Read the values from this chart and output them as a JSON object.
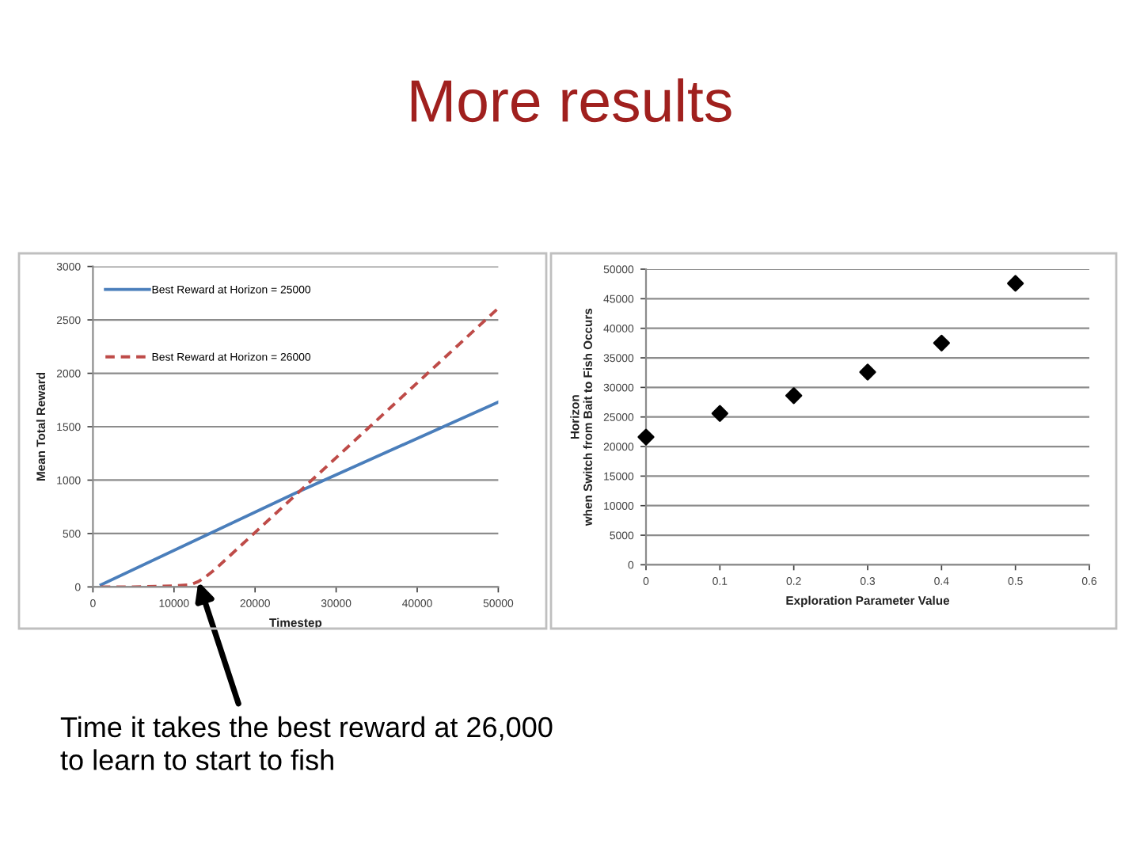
{
  "chart_data": [
    {
      "type": "line",
      "title": "More results",
      "xlabel": "Timestep",
      "ylabel": "Mean Total Reward",
      "xlim": [
        0,
        50000
      ],
      "xticks": [
        0,
        10000,
        20000,
        30000,
        40000,
        50000
      ],
      "ylim": [
        0,
        3000
      ],
      "yticks": [
        0,
        500,
        1000,
        1500,
        2000,
        2500,
        3000
      ],
      "grid": "y",
      "legend": "top left",
      "series": [
        {
          "name": "Best Reward at Horizon = 25000",
          "color": "#4a7ebb",
          "line_style": "solid",
          "x": [
            1000,
            25000,
            50000
          ],
          "values": [
            20,
            880,
            1730
          ]
        },
        {
          "name": "Best Reward at Horizon = 26000",
          "color": "#be4b48",
          "line_style": "dashed",
          "x": [
            1000,
            5000,
            10000,
            12000,
            13000,
            14000,
            15000,
            20000,
            25000,
            30000,
            35000,
            40000,
            45000,
            50000
          ],
          "values": [
            0,
            0,
            10,
            20,
            50,
            100,
            160,
            510,
            860,
            1210,
            1560,
            1910,
            2260,
            2610
          ]
        }
      ],
      "annotations": [
        {
          "text": "Time it takes the best reward at 26,000\nto learn to start to fish",
          "x": 13000,
          "y": 50
        }
      ]
    },
    {
      "type": "scatter",
      "xlabel": "Exploration Parameter Value",
      "ylabel": "Horizon\nwhen Switch from Bait to Fish Occurs",
      "xlim": [
        0,
        0.6
      ],
      "xticks": [
        0,
        0.1,
        0.2,
        0.3,
        0.4,
        0.5,
        0.6
      ],
      "ylim": [
        0,
        50000
      ],
      "yticks": [
        0,
        5000,
        10000,
        15000,
        20000,
        25000,
        30000,
        35000,
        40000,
        45000,
        50000
      ],
      "grid": "y",
      "marker": "diamond",
      "series": [
        {
          "color": "#000000",
          "x": [
            0,
            0.1,
            0.2,
            0.3,
            0.4,
            0.5
          ],
          "values": [
            21600,
            25600,
            28600,
            32600,
            37500,
            47600
          ]
        }
      ]
    }
  ]
}
